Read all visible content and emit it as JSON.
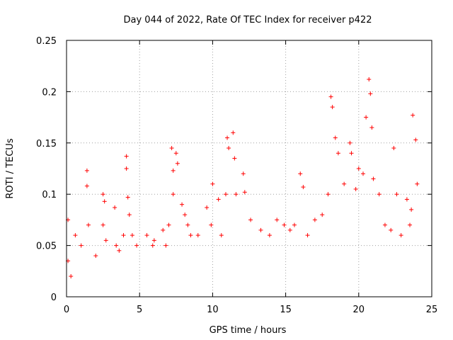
{
  "chart_data": {
    "type": "scatter",
    "title": "Day 044 of 2022, Rate Of TEC Index for receiver p422",
    "xlabel": "GPS time / hours",
    "ylabel": "ROTI / TECUs",
    "xlim": [
      0,
      25
    ],
    "ylim": [
      0,
      0.25
    ],
    "xticks": [
      0,
      5,
      10,
      15,
      20,
      25
    ],
    "yticks": [
      0,
      0.05,
      0.1,
      0.15,
      0.2,
      0.25
    ],
    "xtick_labels": [
      "0",
      "5",
      "10",
      "15",
      "20",
      "25"
    ],
    "ytick_labels": [
      "0",
      "0.05",
      "0.1",
      "0.15",
      "0.2",
      "0.25"
    ],
    "grid": true,
    "marker": "+",
    "color": "#ff0000",
    "series": [
      {
        "name": "p422",
        "x": [
          0.1,
          0.1,
          0.3,
          0.6,
          1.0,
          1.4,
          1.4,
          1.5,
          2.0,
          2.5,
          2.5,
          2.6,
          2.7,
          3.3,
          3.4,
          3.6,
          3.9,
          4.1,
          4.1,
          4.2,
          4.3,
          4.5,
          4.8,
          5.5,
          5.9,
          6.0,
          6.6,
          6.8,
          7.0,
          7.2,
          7.3,
          7.3,
          7.5,
          7.6,
          7.9,
          8.1,
          8.3,
          8.5,
          9.0,
          9.6,
          9.9,
          10.0,
          10.4,
          10.6,
          10.9,
          11.0,
          11.1,
          11.4,
          11.5,
          11.6,
          12.1,
          12.2,
          12.6,
          13.3,
          13.9,
          14.4,
          14.9,
          15.3,
          15.6,
          16.0,
          16.2,
          16.5,
          17.0,
          17.5,
          17.9,
          18.1,
          18.2,
          18.4,
          18.6,
          19.0,
          19.4,
          19.5,
          19.8,
          20.0,
          20.3,
          20.5,
          20.7,
          20.8,
          20.9,
          21.0,
          21.4,
          21.8,
          22.2,
          22.4,
          22.6,
          22.9,
          23.3,
          23.5,
          23.6,
          23.7,
          23.9,
          24.0
        ],
        "y": [
          0.075,
          0.035,
          0.02,
          0.06,
          0.05,
          0.123,
          0.108,
          0.07,
          0.04,
          0.1,
          0.07,
          0.093,
          0.055,
          0.087,
          0.05,
          0.045,
          0.06,
          0.137,
          0.125,
          0.097,
          0.08,
          0.06,
          0.05,
          0.06,
          0.05,
          0.055,
          0.065,
          0.05,
          0.07,
          0.145,
          0.123,
          0.1,
          0.14,
          0.13,
          0.09,
          0.08,
          0.07,
          0.06,
          0.06,
          0.087,
          0.07,
          0.11,
          0.095,
          0.06,
          0.1,
          0.155,
          0.145,
          0.16,
          0.135,
          0.1,
          0.12,
          0.102,
          0.075,
          0.065,
          0.06,
          0.075,
          0.07,
          0.065,
          0.07,
          0.12,
          0.107,
          0.06,
          0.075,
          0.08,
          0.1,
          0.195,
          0.185,
          0.155,
          0.14,
          0.11,
          0.15,
          0.14,
          0.105,
          0.125,
          0.12,
          0.175,
          0.212,
          0.198,
          0.165,
          0.115,
          0.1,
          0.07,
          0.065,
          0.145,
          0.1,
          0.06,
          0.095,
          0.07,
          0.085,
          0.177,
          0.153,
          0.11
        ]
      }
    ]
  }
}
